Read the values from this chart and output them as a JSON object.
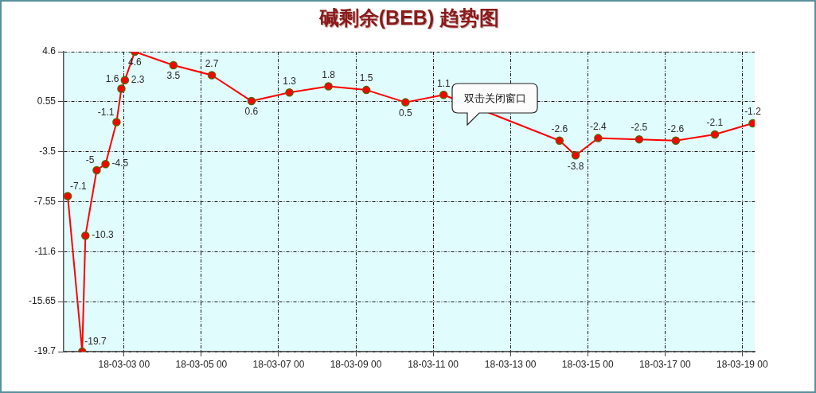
{
  "chart_data": {
    "type": "line",
    "title": "碱剩余(BEB) 趋势图",
    "x": [
      "--03-01T13:00",
      "--03-01T22:00",
      "--03-02T00:00",
      "--03-02T07:00",
      "--03-02T12:30",
      "--03-02T19:20",
      "--03-02T22:20",
      "--03-03T00:30",
      "--03-03T06:40",
      "--03-04T06:40",
      "--03-05T06:30",
      "--03-06T07:10",
      "--03-07T06:45",
      "--03-08T07:00",
      "--03-09T06:30",
      "--03-10T06:50",
      "--03-11T06:30",
      "--03-14T06:30",
      "--03-14T16:30",
      "--03-15T06:30",
      "--03-16T08:00",
      "--03-17T06:45",
      "--03-18T07:00",
      "--03-19T06:30"
    ],
    "values": [
      -7.1,
      -19.7,
      -10.3,
      -5,
      -4.5,
      -1.1,
      1.6,
      2.3,
      4.6,
      3.5,
      2.7,
      0.6,
      1.3,
      1.8,
      1.5,
      0.5,
      1.1,
      -2.6,
      -3.8,
      -2.4,
      -2.5,
      -2.6,
      -2.1,
      -1.2
    ],
    "color": "#ff0000",
    "xlim": [
      "--03-01T10:30",
      "--03-19T07:45"
    ],
    "xticks": [
      {
        "value": "--03-03T00:00",
        "label": "18-03-03 00"
      },
      {
        "value": "--03-05T00:00",
        "label": "18-03-05 00"
      },
      {
        "value": "--03-07T00:00",
        "label": "18-03-07 00"
      },
      {
        "value": "--03-09T00:00",
        "label": "18-03-09 00"
      },
      {
        "value": "--03-11T00:00",
        "label": "18-03-11 00"
      },
      {
        "value": "--03-13T00:00",
        "label": "18-03-13 00"
      },
      {
        "value": "--03-15T00:00",
        "label": "18-03-15 00"
      },
      {
        "value": "--03-17T00:00",
        "label": "18-03-17 00"
      },
      {
        "value": "--03-19T00:00",
        "label": "18-03-19 00"
      }
    ],
    "ylim": [
      -19.7,
      4.6
    ],
    "yticks": [
      4.6,
      0.55,
      -3.5,
      -7.55,
      -11.6,
      -15.65,
      -19.7
    ],
    "grid": true,
    "marker": "circle",
    "line_style": "solid",
    "data_labels": true,
    "annotations": [
      "双击关闭窗口"
    ]
  }
}
